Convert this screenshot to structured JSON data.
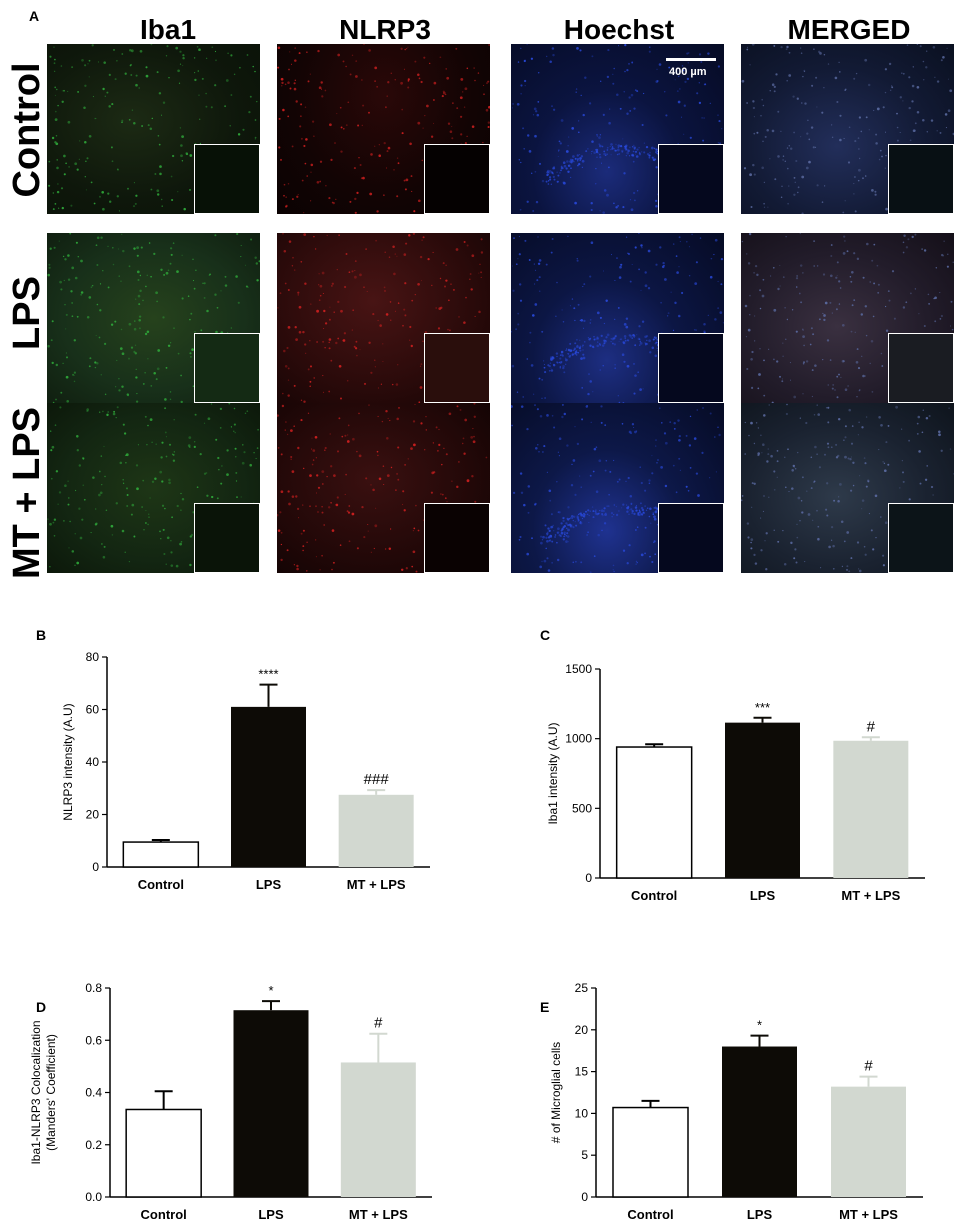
{
  "figure": {
    "panel_a_letter": "A",
    "columns": [
      "Iba1",
      "NLRP3",
      "Hoechst",
      "MERGED"
    ],
    "rows": [
      "Control",
      "LPS",
      "MT + LPS"
    ],
    "scale_bar_label": "400 µm",
    "channel_colors": {
      "Iba1": "#2fa83a",
      "NLRP3": "#d02020",
      "Hoechst": "#2848d8",
      "MERGED": "#5a6aa0"
    }
  },
  "chart_data": [
    {
      "panel": "B",
      "type": "bar",
      "categories": [
        "Control",
        "LPS",
        "MT + LPS"
      ],
      "values": [
        9.5,
        61,
        27.5
      ],
      "errors": [
        0.8,
        8.5,
        1.8
      ],
      "annotations": [
        "",
        "****",
        "###"
      ],
      "ylabel": "NLRP3 intensity (A.U)",
      "ylim": [
        0,
        80
      ],
      "yticks": [
        0,
        20,
        40,
        60,
        80
      ],
      "colors": [
        "#ffffff",
        "#0d0b06",
        "#d2d8d0"
      ]
    },
    {
      "panel": "C",
      "type": "bar",
      "categories": [
        "Control",
        "LPS",
        "MT + LPS"
      ],
      "values": [
        940,
        1115,
        985
      ],
      "errors": [
        20,
        35,
        25
      ],
      "annotations": [
        "",
        "***",
        "#"
      ],
      "ylabel": "Iba1 intensity  (A.U)",
      "ylim": [
        0,
        1500
      ],
      "yticks": [
        0,
        500,
        1000,
        1500
      ],
      "colors": [
        "#ffffff",
        "#0d0b06",
        "#d2d8d0"
      ]
    },
    {
      "panel": "D",
      "type": "bar",
      "categories": [
        "Control",
        "LPS",
        "MT + LPS"
      ],
      "values": [
        0.335,
        0.715,
        0.515
      ],
      "errors": [
        0.07,
        0.035,
        0.11
      ],
      "annotations": [
        "",
        "*",
        "#"
      ],
      "ylabel": "Iba1-NLRP3 Colocalization",
      "ylabel2": "(Manders' Coefficient)",
      "ylim": [
        0,
        0.8
      ],
      "yticks": [
        "0.0",
        "0.2",
        "0.4",
        "0.6",
        "0.8"
      ],
      "colors": [
        "#ffffff",
        "#0d0b06",
        "#d2d8d0"
      ]
    },
    {
      "panel": "E",
      "type": "bar",
      "categories": [
        "Control",
        "LPS",
        "MT + LPS"
      ],
      "values": [
        10.7,
        18,
        13.2
      ],
      "errors": [
        0.8,
        1.3,
        1.2
      ],
      "annotations": [
        "",
        "*",
        "#"
      ],
      "ylabel": "# of Microglial cells",
      "ylim": [
        0,
        25
      ],
      "yticks": [
        0,
        5,
        10,
        15,
        20,
        25
      ],
      "colors": [
        "#ffffff",
        "#0d0b06",
        "#d2d8d0"
      ]
    }
  ]
}
